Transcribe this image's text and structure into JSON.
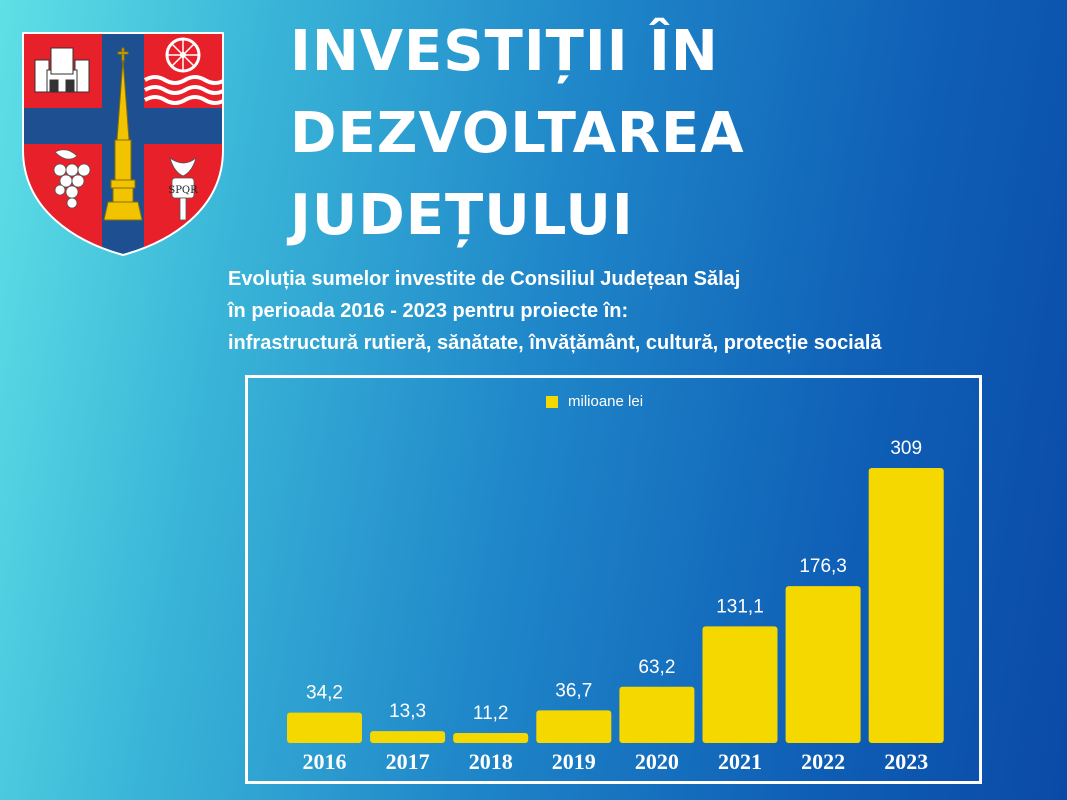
{
  "header": {
    "title_lines": [
      "INVESTIȚII ÎN",
      "DEZVOLTAREA",
      "JUDEȚULUI"
    ],
    "subtitle_lines": [
      "Evoluția sumelor investite de Consiliul Județean Sălaj",
      "în perioada 2016 - 2023 pentru proiecte în:",
      "infrastructură rutieră, sănătate, învățământ, cultură, protecție socială"
    ]
  },
  "crest": {
    "motto": "SPQR"
  },
  "colors": {
    "bar": "#f5d800",
    "crest_red": "#e8202a",
    "crest_blue": "#1d4f91",
    "gold": "#f2c400"
  },
  "chart_data": {
    "type": "bar",
    "categories": [
      "2016",
      "2017",
      "2018",
      "2019",
      "2020",
      "2021",
      "2022",
      "2023"
    ],
    "series": [
      {
        "name": "milioane lei",
        "values": [
          34.2,
          13.3,
          11.2,
          36.7,
          63.2,
          131.1,
          176.3,
          309
        ]
      }
    ],
    "value_labels": [
      "34,2",
      "13,3",
      "11,2",
      "36,7",
      "63,2",
      "131,1",
      "176,3",
      "309"
    ],
    "ylim": [
      0,
      309
    ],
    "grid": false,
    "legend": "top-center"
  }
}
